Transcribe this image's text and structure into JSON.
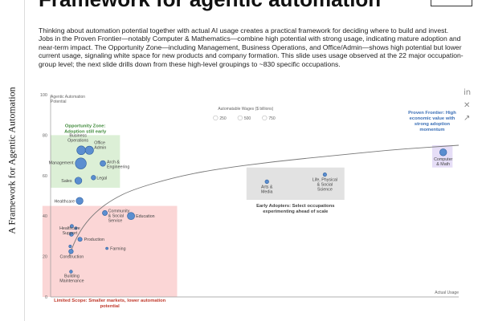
{
  "page": {
    "heading": "Framework for agentic automation",
    "badge": "",
    "side_title": "A Framework for Agentic Automation",
    "intro": "Thinking about automation potential together with actual AI usage creates a practical framework for deciding where to build and invest. Jobs in the Proven Frontier—notably Computer & Mathematics—combine high potential with strong usage, indicating mature adoption and near-term impact. The Opportunity Zone—including Management, Business Operations, and Office/Admin—shows high potential but lower current usage, signaling white space for new products and company formation. This slide uses usage observed at the 22 major occupation-group level; the next slide drills down from these high-level groupings to ~830 specific occupations."
  },
  "share_icons": [
    {
      "name": "linkedin-icon",
      "glyph": "in"
    },
    {
      "name": "x-icon",
      "glyph": "✕"
    },
    {
      "name": "link-icon",
      "glyph": "↗"
    }
  ],
  "chart_data": {
    "type": "scatter",
    "ylabel": "Agentic Automation Potential",
    "xlabel": "Actual Usage",
    "ylim": [
      0,
      100
    ],
    "yticks": [
      0,
      20,
      40,
      60,
      80,
      100
    ],
    "grid": false,
    "size_legend": {
      "title": "Automatable Wages ($ billions)",
      "values": [
        250,
        500,
        750
      ],
      "placement": "top-center"
    },
    "colors": {
      "bubble": "#5b8ed0",
      "bubble_stroke": "#2e5f9e",
      "opportunity": "#dcefd6",
      "opportunity_text": "#3f8a3a",
      "limited": "#fbd6d6",
      "limited_text": "#c0392b",
      "early": "#e2e2e2",
      "early_text": "#444444",
      "frontier": "#e6def7",
      "frontier_text": "#3b6fb6",
      "curve": "#777777"
    },
    "zones": [
      {
        "name": "opportunity",
        "label": [
          "Opportunity Zone:",
          "Adoption still early"
        ],
        "x": [
          0,
          0.17
        ],
        "y": [
          54,
          80
        ]
      },
      {
        "name": "limited",
        "label": [
          "Limited Scope: Smaller markets, lower automation",
          "potential"
        ],
        "x": [
          -0.02,
          0.31
        ],
        "y": [
          0,
          45
        ]
      },
      {
        "name": "early",
        "label": [
          "Early Adopters: Select occupations",
          "experimenting ahead of scale"
        ],
        "x": [
          0.48,
          0.72
        ],
        "y": [
          48,
          64
        ]
      },
      {
        "name": "frontier",
        "label": [
          "Proven Frontier: High",
          "economic value with",
          "strong adoption",
          "momentum"
        ],
        "x": [
          0.935,
          0.985
        ],
        "y": [
          64,
          75
        ]
      }
    ],
    "points": [
      {
        "label": [
          "Business",
          "Operations"
        ],
        "x": 0.075,
        "y": 72.5,
        "size": 330
      },
      {
        "label": [
          "Office",
          "Admin"
        ],
        "x": 0.095,
        "y": 72.5,
        "size": 300
      },
      {
        "label": [
          "Management"
        ],
        "x": 0.074,
        "y": 66,
        "size": 520
      },
      {
        "label": [
          "Arch &",
          "Engineering"
        ],
        "x": 0.128,
        "y": 66,
        "size": 140
      },
      {
        "label": [
          "Legal"
        ],
        "x": 0.105,
        "y": 59,
        "size": 90
      },
      {
        "label": [
          "Sales"
        ],
        "x": 0.068,
        "y": 57.5,
        "size": 210
      },
      {
        "label": [
          "Healthcare"
        ],
        "x": 0.071,
        "y": 47.5,
        "size": 210
      },
      {
        "label": [
          "Community",
          "& Social",
          "Service"
        ],
        "x": 0.133,
        "y": 41.5,
        "size": 110
      },
      {
        "label": [
          "Education"
        ],
        "x": 0.197,
        "y": 40,
        "size": 230
      },
      {
        "label": [],
        "x": 0.052,
        "y": 35,
        "size": 50
      },
      {
        "label": [],
        "x": 0.062,
        "y": 34,
        "size": 30
      },
      {
        "label": [
          "Healthcare",
          "Support"
        ],
        "x": 0.051,
        "y": 31,
        "size": 70
      },
      {
        "label": [
          "Production"
        ],
        "x": 0.072,
        "y": 28.5,
        "size": 80
      },
      {
        "label": [
          "Farming"
        ],
        "x": 0.138,
        "y": 24,
        "size": 25
      },
      {
        "label": [],
        "x": 0.048,
        "y": 25,
        "size": 30
      },
      {
        "label": [
          "Construction"
        ],
        "x": 0.05,
        "y": 22.5,
        "size": 90
      },
      {
        "label": [
          "Building",
          "Maintenance"
        ],
        "x": 0.05,
        "y": 12.5,
        "size": 40
      },
      {
        "label": [
          "Arts &",
          "Media"
        ],
        "x": 0.53,
        "y": 57,
        "size": 60
      },
      {
        "label": [
          "Life, Physical",
          "& Social",
          "Science"
        ],
        "x": 0.672,
        "y": 60.5,
        "size": 55
      },
      {
        "label": [
          "Computer",
          "& Math"
        ],
        "x": 0.962,
        "y": 71.5,
        "size": 210
      }
    ],
    "curve": [
      [
        0.045,
        20
      ],
      [
        0.06,
        28
      ],
      [
        0.08,
        35
      ],
      [
        0.11,
        42
      ],
      [
        0.15,
        48
      ],
      [
        0.2,
        53
      ],
      [
        0.3,
        59
      ],
      [
        0.4,
        63
      ],
      [
        0.55,
        67
      ],
      [
        0.7,
        70
      ],
      [
        0.85,
        73
      ],
      [
        1.0,
        75
      ]
    ]
  }
}
